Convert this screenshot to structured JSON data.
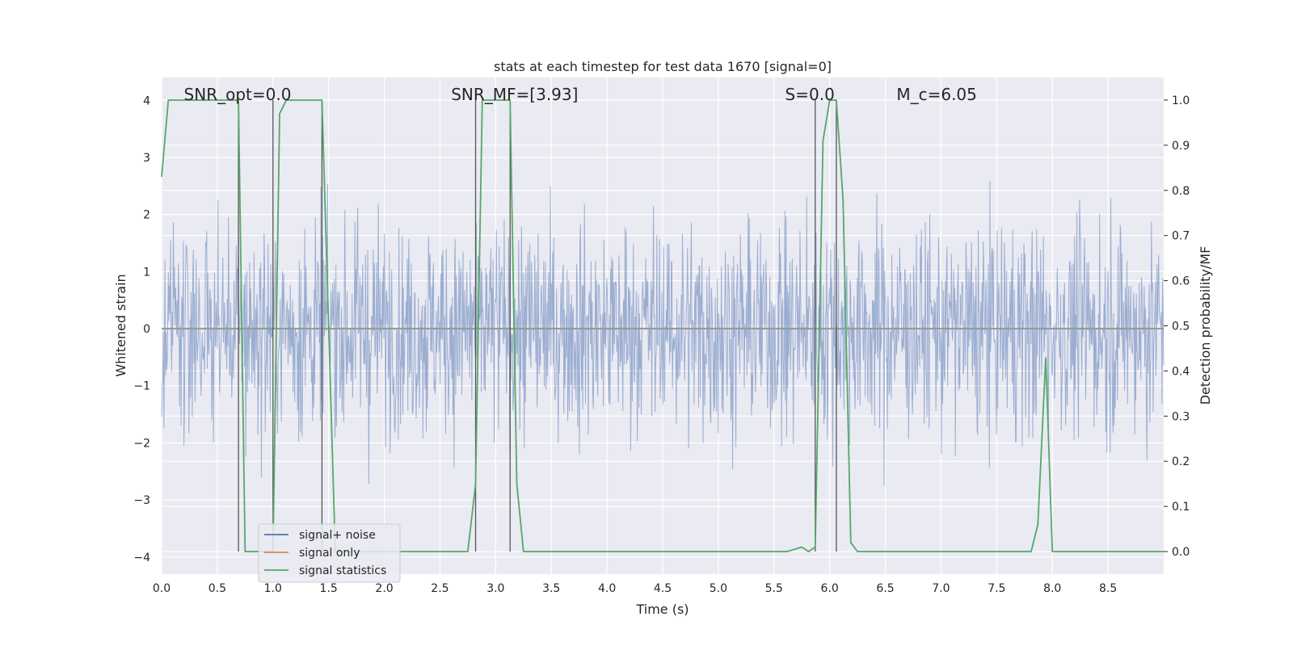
{
  "chart_data": {
    "type": "line",
    "title": "stats at each timestep for test data 1670 [signal=0]",
    "xlabel": "Time (s)",
    "ylabel_left": "Whitened strain",
    "ylabel_right": "Detection probability/MF",
    "xlim": [
      0.0,
      9.0
    ],
    "ylim_left": [
      -4.3,
      4.4
    ],
    "ylim_right": [
      -0.05,
      1.05
    ],
    "x_ticks": [
      "0.0",
      "0.5",
      "1.0",
      "1.5",
      "2.0",
      "2.5",
      "3.0",
      "3.5",
      "4.0",
      "4.5",
      "5.0",
      "5.5",
      "6.0",
      "6.5",
      "7.0",
      "7.5",
      "8.0",
      "8.5"
    ],
    "y_ticks_left": [
      "4",
      "3",
      "2",
      "1",
      "0",
      "−1",
      "−2",
      "−3",
      "−4"
    ],
    "y_ticks_right": [
      "1.0",
      "0.9",
      "0.8",
      "0.7",
      "0.6",
      "0.5",
      "0.4",
      "0.3",
      "0.2",
      "0.1",
      "0.0"
    ],
    "grid": true,
    "legend_position": "lower-left",
    "background": "#eaeaf2",
    "annotations": [
      {
        "text": "SNR_opt=0.0",
        "x": 0.2
      },
      {
        "text": "SNR_MF=[3.93]",
        "x": 2.6
      },
      {
        "text": "S=0.0",
        "x": 5.6
      },
      {
        "text": "M_c=6.05",
        "x": 6.6
      }
    ],
    "vertical_markers_x": [
      0.69,
      1.0,
      1.44,
      2.82,
      3.13,
      5.87,
      6.06
    ],
    "series": [
      {
        "name": "signal+ noise",
        "color": "#4c72b0",
        "axis": "left",
        "description": "whitened noise strain, dense samples spanning roughly -4 to 4"
      },
      {
        "name": "signal only",
        "color": "#dd8452",
        "axis": "left",
        "x": [
          0.0,
          9.0
        ],
        "y": [
          0.0,
          0.0
        ]
      },
      {
        "name": "signal statistics",
        "color": "#55a868",
        "axis": "right",
        "x": [
          0.0,
          0.06,
          0.12,
          0.62,
          0.69,
          0.75,
          0.82,
          0.99,
          1.0,
          1.06,
          1.12,
          1.3,
          1.44,
          1.56,
          2.5,
          2.75,
          2.82,
          2.88,
          3.0,
          3.13,
          3.19,
          3.25,
          5.37,
          5.62,
          5.75,
          5.81,
          5.87,
          5.94,
          6.0,
          6.06,
          6.12,
          6.19,
          6.25,
          7.75,
          7.81,
          7.87,
          7.94,
          8.0,
          8.06,
          9.0
        ],
        "y": [
          0.83,
          1.0,
          1.0,
          1.0,
          1.0,
          0.0,
          0.0,
          0.0,
          0.0,
          0.97,
          1.0,
          1.0,
          1.0,
          0.0,
          0.0,
          0.0,
          0.15,
          1.0,
          1.0,
          1.0,
          0.15,
          0.0,
          0.0,
          0.0,
          0.01,
          0.0,
          0.01,
          0.91,
          1.0,
          1.0,
          0.78,
          0.02,
          0.0,
          0.0,
          0.0,
          0.06,
          0.43,
          0.0,
          0.0,
          0.0
        ]
      }
    ]
  }
}
